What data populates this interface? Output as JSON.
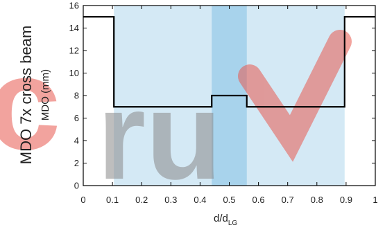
{
  "chart_data": {
    "type": "line",
    "side_title": "MDO 7x cross beam",
    "ylabel": "MDO (mm)",
    "xlabel_main": "d/d",
    "xlabel_sub": "LG",
    "xlim": [
      0,
      1
    ],
    "ylim": [
      0,
      16
    ],
    "x_ticks": [
      0,
      0.1,
      0.2,
      0.3,
      0.4,
      0.5,
      0.6,
      0.7,
      0.8,
      0.9,
      1
    ],
    "x_tick_labels": [
      "0",
      "0.1",
      "0.2",
      "0.3",
      "0.4",
      "0.5",
      "0.6",
      "0.7",
      "0.8",
      "0.9",
      "1"
    ],
    "y_ticks": [
      0,
      2,
      4,
      6,
      8,
      10,
      12,
      14,
      16
    ],
    "y_tick_labels": [
      "0",
      "2",
      "4",
      "6",
      "8",
      "10",
      "12",
      "14",
      "16"
    ],
    "bands": [
      {
        "x0": 0.105,
        "x1": 0.895,
        "color": "#d4e9f5"
      },
      {
        "x0": 0.44,
        "x1": 0.56,
        "color": "#a8d3ec"
      }
    ],
    "series": [
      {
        "x": [
          0,
          0.105,
          0.105,
          0.44,
          0.44,
          0.56,
          0.56,
          0.895,
          0.895,
          1
        ],
        "y": [
          15,
          15,
          7,
          7,
          8,
          8,
          7,
          7,
          15,
          15
        ],
        "color": "#000000"
      }
    ],
    "watermark": {
      "text_left": "c",
      "text_mid": "ru",
      "colors": {
        "left": "#e8594f",
        "mid": "#8a8a8a",
        "check": "#e8594f"
      }
    }
  }
}
